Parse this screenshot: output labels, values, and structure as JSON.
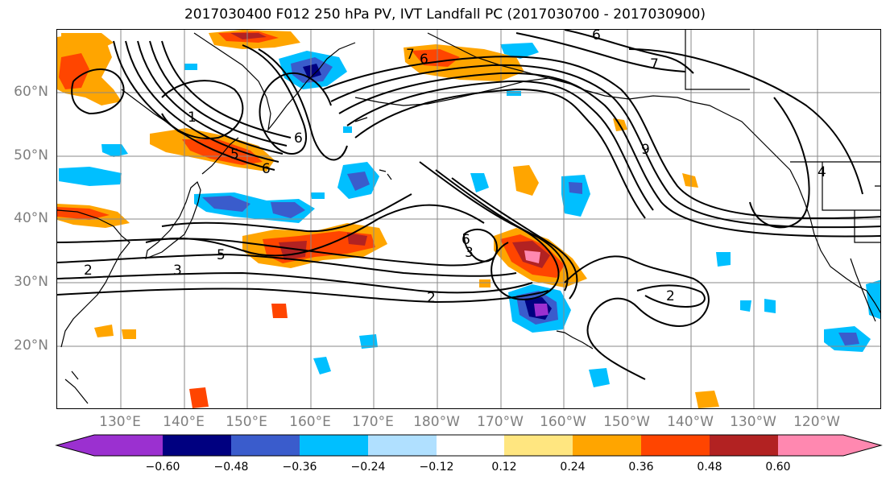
{
  "title": "2017030400 F012 250 hPa PV, IVT Landfall PC (2017030700 - 2017030900)",
  "map": {
    "latitude_labels": [
      "60°N",
      "50°N",
      "40°N",
      "30°N",
      "20°N"
    ],
    "longitude_labels": [
      "130°E",
      "140°E",
      "150°E",
      "160°E",
      "170°E",
      "180°W",
      "170°W",
      "160°W",
      "150°W",
      "140°W",
      "130°W",
      "120°W"
    ],
    "contour_labels": [
      "1",
      "5",
      "6",
      "6",
      "7",
      "6",
      "6",
      "7",
      "9",
      "4",
      "2",
      "3",
      "5",
      "6",
      "3",
      "2",
      "2"
    ]
  },
  "colorbar": {
    "tick_labels": [
      "−0.60",
      "−0.48",
      "−0.36",
      "−0.24",
      "−0.12",
      "0.12",
      "0.24",
      "0.36",
      "0.48",
      "0.60"
    ],
    "colors": [
      "#9b30d0",
      "#000080",
      "#3a5ccc",
      "#00bfff",
      "#b0e0ff",
      "#ffffff",
      "#ffe680",
      "#ffa500",
      "#ff4500",
      "#b22222",
      "#ff88b0"
    ]
  }
}
